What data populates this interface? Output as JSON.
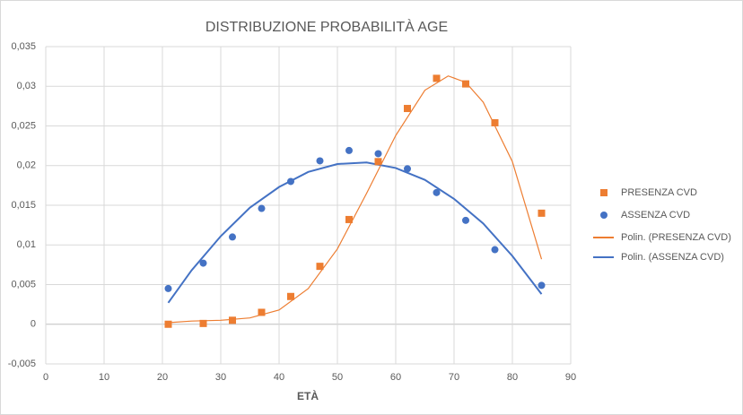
{
  "chart_data": {
    "type": "scatter",
    "title": "DISTRIBUZIONE PROBABILITÀ AGE",
    "x_label": "ETÀ",
    "xlim": [
      0,
      90
    ],
    "xticks": [
      0,
      10,
      20,
      30,
      40,
      50,
      60,
      70,
      80,
      90
    ],
    "ylim": [
      -0.005,
      0.035
    ],
    "yticks": [
      {
        "value": -0.005,
        "label": "-0,005"
      },
      0,
      {
        "value": 0.005,
        "label": "0,005"
      },
      {
        "value": 0.01,
        "label": "0,01"
      },
      {
        "value": 0.015,
        "label": "0,015"
      },
      {
        "value": 0.02,
        "label": "0,02"
      },
      {
        "value": 0.025,
        "label": "0,025"
      },
      {
        "value": 0.03,
        "label": "0,03"
      },
      {
        "value": 0.035,
        "label": "0,035"
      }
    ],
    "grid": true,
    "legend": "right",
    "series": [
      {
        "name": "PRESENZA CVD",
        "color": "#ed7d31",
        "style": "marker",
        "marker": "square",
        "x": [
          21,
          27,
          32,
          37,
          42,
          47,
          52,
          57,
          62,
          67,
          72,
          77,
          85
        ],
        "values": [
          0,
          0.0001,
          0.0005,
          0.0015,
          0.0035,
          0.0073,
          0.0132,
          0.0205,
          0.0272,
          0.031,
          0.0303,
          0.0254,
          0.014
        ]
      },
      {
        "name": "ASSENZA CVD",
        "color": "#4472c4",
        "style": "marker",
        "marker": "circle",
        "x": [
          21,
          27,
          32,
          37,
          42,
          47,
          52,
          57,
          62,
          67,
          72,
          77,
          85
        ],
        "values": [
          0.0045,
          0.0077,
          0.011,
          0.0146,
          0.018,
          0.0206,
          0.0219,
          0.0215,
          0.0196,
          0.0166,
          0.0131,
          0.0094,
          0.0049
        ]
      },
      {
        "name": "Polin. (PRESENZA CVD)",
        "color": "#ed7d31",
        "style": "line",
        "x": [
          21,
          25,
          30,
          35,
          40,
          45,
          50,
          55,
          60,
          65,
          69,
          72,
          75,
          80,
          85
        ],
        "values": [
          0.0002,
          0.0004,
          0.0005,
          0.0008,
          0.0018,
          0.0045,
          0.0095,
          0.0165,
          0.0238,
          0.0295,
          0.0313,
          0.0305,
          0.028,
          0.0205,
          0.0082
        ]
      },
      {
        "name": "Polin. (ASSENZA CVD)",
        "color": "#4472c4",
        "style": "line",
        "x": [
          21,
          25,
          30,
          35,
          40,
          45,
          50,
          55,
          60,
          65,
          70,
          75,
          80,
          85
        ],
        "values": [
          0.0027,
          0.0068,
          0.0111,
          0.0147,
          0.0173,
          0.0192,
          0.0202,
          0.0204,
          0.0197,
          0.0182,
          0.0158,
          0.0127,
          0.0086,
          0.0038
        ]
      }
    ]
  }
}
